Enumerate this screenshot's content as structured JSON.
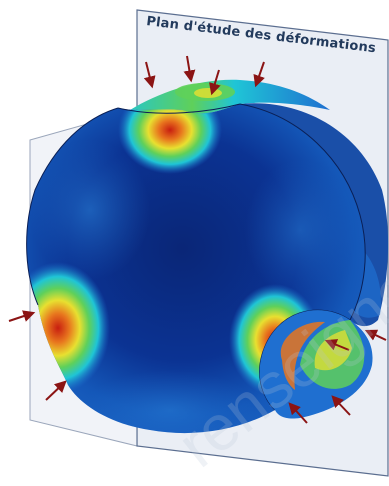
{
  "figure": {
    "plane_label": "Plan d'étude des déformations",
    "watermark_text": "renseigne",
    "colors": {
      "background": "#ffffff",
      "plane_fill": "#e8edf4",
      "plane_edge": "#4a5f84",
      "arrow": "#8b1414",
      "field_low": "#0a2e86",
      "field_mid": "#1f6fd0",
      "field_cyan": "#1fc5d6",
      "field_green": "#5fd05a",
      "field_yellow": "#e8e030",
      "field_high": "#c81e10"
    },
    "load_arrows_count": 10
  }
}
